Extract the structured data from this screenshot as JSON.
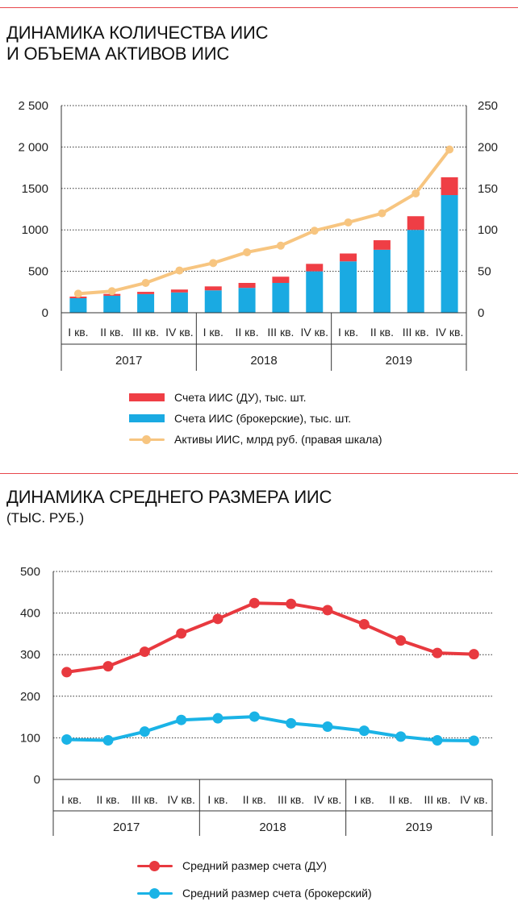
{
  "chart_data": [
    {
      "type": "bar",
      "title": "ДИНАМИКА КОЛИЧЕСТВА ИИС И ОБЪЕМА АКТИВОВ ИИС",
      "categories": [
        "I кв.",
        "II кв.",
        "III кв.",
        "IV кв.",
        "I кв.",
        "II кв.",
        "III кв.",
        "IV кв.",
        "I кв.",
        "II кв.",
        "III кв.",
        "IV кв."
      ],
      "groups": [
        "2017",
        "2018",
        "2019"
      ],
      "stacked": true,
      "series": [
        {
          "name": "Счета ИИС (брокерские), тыс. шт.",
          "color": "#1aaae2",
          "values": [
            175,
            205,
            225,
            245,
            270,
            300,
            360,
            500,
            620,
            760,
            1000,
            1420
          ]
        },
        {
          "name": "Счета ИИС (ДУ), тыс. шт.",
          "color": "#ef3e45",
          "values": [
            20,
            22,
            27,
            35,
            48,
            60,
            75,
            90,
            95,
            115,
            165,
            215
          ]
        },
        {
          "name": "Активы ИИС, млрд руб. (правая шкала)",
          "color": "#f7c580",
          "type": "line",
          "axis": "right",
          "values": [
            23,
            26,
            36,
            51,
            60,
            73,
            81,
            99,
            109,
            120,
            144,
            197
          ]
        }
      ],
      "ylim": [
        0,
        2500
      ],
      "y_ticks": [
        "0",
        "500",
        "1000",
        "1500",
        "2 000",
        "2 500"
      ],
      "y2lim": [
        0,
        250
      ],
      "y2_ticks": [
        "0",
        "50",
        "100",
        "150",
        "200",
        "250"
      ],
      "grid": true,
      "legend_position": "bottom"
    },
    {
      "type": "line",
      "title": "ДИНАМИКА СРЕДНЕГО РАЗМЕРА ИИС",
      "subtitle": "(ТЫС. РУБ.)",
      "categories": [
        "I кв.",
        "II кв.",
        "III кв.",
        "IV кв.",
        "I кв.",
        "II кв.",
        "III кв.",
        "IV кв.",
        "I кв.",
        "II кв.",
        "III кв.",
        "IV кв."
      ],
      "groups": [
        "2017",
        "2018",
        "2019"
      ],
      "series": [
        {
          "name": "Средний размер счета (ДУ)",
          "color": "#e8393f",
          "values": [
            258,
            272,
            307,
            351,
            386,
            424,
            422,
            407,
            373,
            334,
            304,
            301
          ]
        },
        {
          "name": "Средний размер счета (брокерский)",
          "color": "#1ab3e6",
          "values": [
            96,
            94,
            115,
            143,
            147,
            151,
            135,
            127,
            117,
            103,
            94,
            93
          ]
        }
      ],
      "ylim": [
        0,
        500
      ],
      "y_ticks": [
        "0",
        "100",
        "200",
        "300",
        "400",
        "500"
      ],
      "grid": true,
      "legend_position": "bottom"
    }
  ]
}
